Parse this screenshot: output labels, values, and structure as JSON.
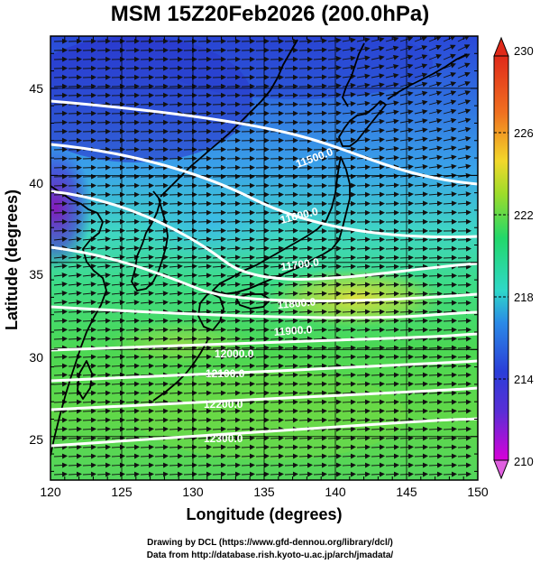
{
  "title": "MSM 15Z20Feb2026 (200.0hPa)",
  "map": {
    "xlabel": "Longitude (degrees)",
    "ylabel": "Latitude  (degrees)",
    "lon_range": [
      120,
      150
    ],
    "lat_range": [
      22.5,
      48
    ],
    "lon_ticks": [
      "120",
      "125",
      "130",
      "135",
      "140",
      "145",
      "150"
    ],
    "lat_ticks": [
      "25",
      "30",
      "35",
      "40",
      "45"
    ],
    "contour_labels": [
      "11500.0",
      "11600.0",
      "11700.0",
      "11800.0",
      "11900.0",
      "12000.0",
      "12100.0",
      "12200.0",
      "12300.0"
    ],
    "colorbar": {
      "ticks": [
        "210",
        "214",
        "218",
        "222",
        "226",
        "230"
      ],
      "range": [
        210,
        230
      ],
      "colors": [
        "#d800d8",
        "#3a2fd6",
        "#1f8be6",
        "#2fd8c8",
        "#22d86a",
        "#9edc2a",
        "#f2d82a",
        "#f07020",
        "#e02a1a"
      ]
    },
    "wind_direction": "westerly",
    "colors": {
      "contour": "#ffffff",
      "coast": "#000000",
      "vector": "#111111"
    }
  },
  "credits": {
    "line1": "Drawing by DCL (https://www.gfd-dennou.org/library/dcl/)",
    "line2": "Data from http://database.rish.kyoto-u.ac.jp/arch/jmadata/"
  }
}
